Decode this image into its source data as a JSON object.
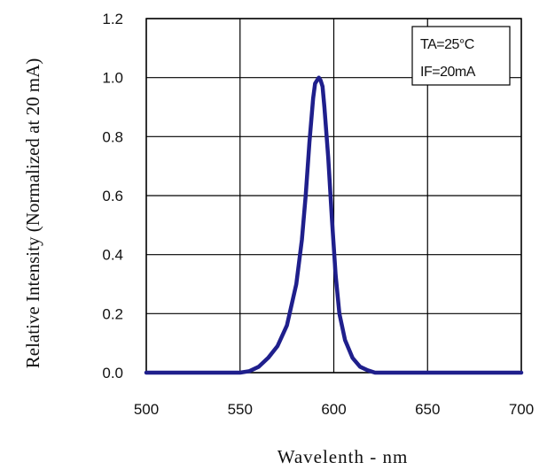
{
  "chart_data": {
    "type": "line",
    "title": "",
    "xlabel": "Wavelenth - nm",
    "ylabel": "Relative Intensity (Normalized at 20 mA)",
    "xlim": [
      500,
      700
    ],
    "ylim": [
      0.0,
      1.2
    ],
    "x_ticks": [
      500,
      550,
      600,
      650,
      700
    ],
    "y_ticks": [
      0.0,
      0.2,
      0.4,
      0.6,
      0.8,
      1.0,
      1.2
    ],
    "x_tick_labels": [
      "500",
      "550",
      "600",
      "650",
      "700"
    ],
    "y_tick_labels": [
      "0.0",
      "0.2",
      "0.4",
      "0.6",
      "0.8",
      "1.0",
      "1.2"
    ],
    "grid": true,
    "legend": {
      "placement": "top-right",
      "lines": [
        "TA=25°C",
        "IF=20mA"
      ]
    },
    "series": [
      {
        "color": "#1f1f8c",
        "x": [
          500,
          520,
          540,
          550,
          555,
          560,
          565,
          570,
          575,
          580,
          583,
          585,
          587,
          589,
          590,
          591,
          592,
          593,
          594,
          595,
          597,
          599,
          601,
          603,
          606,
          610,
          614,
          618,
          622,
          630,
          650,
          700
        ],
        "y": [
          0.0,
          0.0,
          0.0,
          0.0,
          0.005,
          0.02,
          0.05,
          0.09,
          0.16,
          0.3,
          0.45,
          0.6,
          0.78,
          0.93,
          0.98,
          0.99,
          1.0,
          0.99,
          0.97,
          0.9,
          0.73,
          0.52,
          0.33,
          0.2,
          0.11,
          0.05,
          0.02,
          0.008,
          0.0,
          0.0,
          0.0,
          0.0
        ]
      }
    ]
  }
}
